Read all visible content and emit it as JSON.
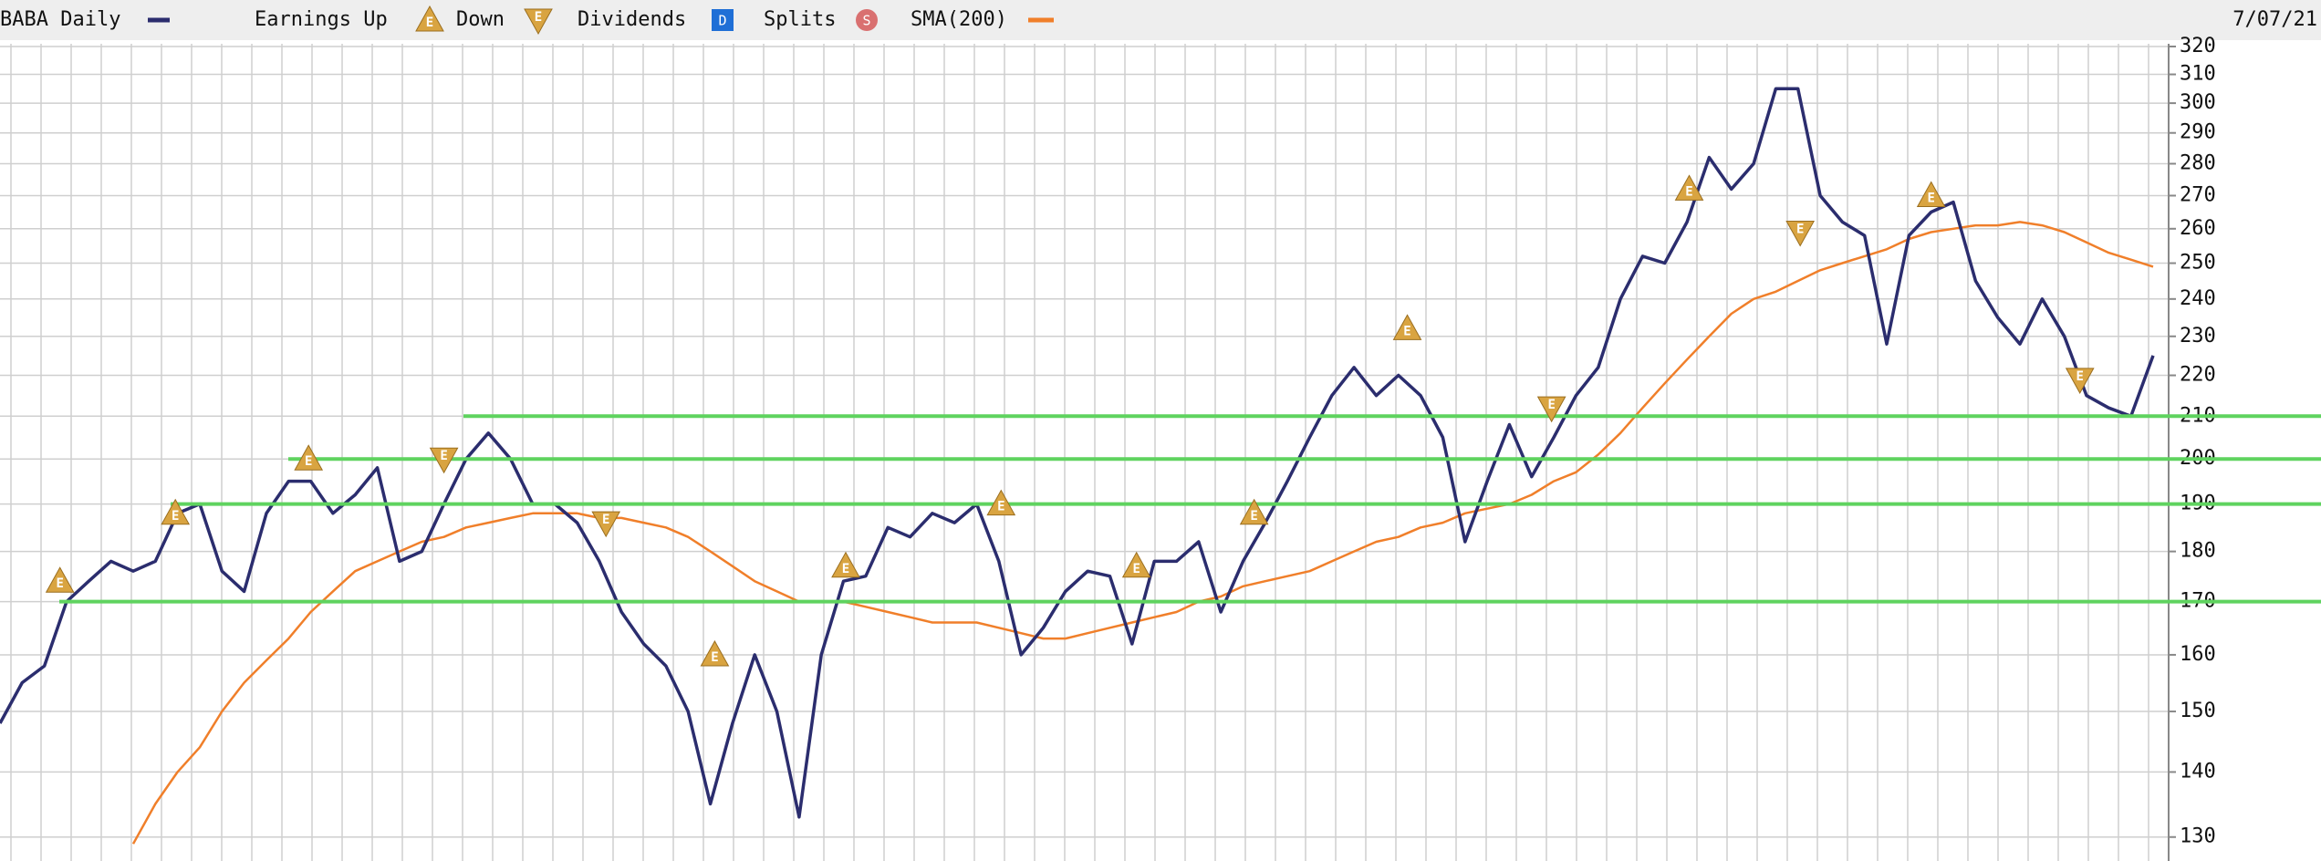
{
  "chart_data": {
    "type": "line",
    "log_scale": true,
    "grid": true,
    "date": "7/07/21",
    "legend": {
      "earnings_up": "Earnings Up",
      "down": "Down",
      "dividends": "Dividends",
      "splits": "Splits",
      "earnings_letter": "E",
      "dividend_letter": "D",
      "split_letter": "S",
      "marker_color": "#d9a441",
      "dividend_color": "#1f6fd6",
      "split_color": "#d97070"
    },
    "ylim": [
      126.5,
      321
    ],
    "yticks": [
      130,
      140,
      150,
      160,
      170,
      180,
      190,
      200,
      210,
      220,
      230,
      240,
      250,
      260,
      270,
      280,
      290,
      300,
      310,
      320
    ],
    "series": [
      {
        "name": "BABA Daily",
        "color": "#2b2d6e",
        "values": [
          148,
          155,
          158,
          170,
          174,
          178,
          176,
          178,
          188,
          190,
          176,
          172,
          188,
          195,
          195,
          188,
          192,
          198,
          178,
          180,
          190,
          200,
          206,
          200,
          190,
          190,
          186,
          178,
          168,
          162,
          158,
          150,
          135,
          148,
          160,
          150,
          133,
          160,
          174,
          175,
          185,
          183,
          188,
          186,
          190,
          178,
          160,
          165,
          172,
          176,
          175,
          162,
          178,
          178,
          182,
          168,
          178,
          186,
          195,
          205,
          215,
          222,
          215,
          220,
          215,
          205,
          182,
          195,
          208,
          196,
          205,
          215,
          222,
          240,
          252,
          250,
          262,
          282,
          272,
          280,
          305,
          305,
          270,
          262,
          258,
          228,
          258,
          265,
          268,
          245,
          235,
          228,
          240,
          230,
          215,
          212,
          210,
          225
        ]
      },
      {
        "name": "SMA(200)",
        "color": "#f07f2a",
        "values": [
          null,
          null,
          null,
          null,
          null,
          null,
          129,
          135,
          140,
          144,
          150,
          155,
          159,
          163,
          168,
          172,
          176,
          178,
          180,
          182,
          183,
          185,
          186,
          187,
          188,
          188,
          188,
          187,
          187,
          186,
          185,
          183,
          180,
          177,
          174,
          172,
          170,
          170,
          170,
          169,
          168,
          167,
          166,
          166,
          166,
          165,
          164,
          163,
          163,
          164,
          165,
          166,
          167,
          168,
          170,
          171,
          173,
          174,
          175,
          176,
          178,
          180,
          182,
          183,
          185,
          186,
          188,
          189,
          190,
          192,
          195,
          197,
          201,
          206,
          212,
          218,
          224,
          230,
          236,
          240,
          242,
          245,
          248,
          250,
          252,
          254,
          257,
          259,
          260,
          261,
          261,
          262,
          261,
          259,
          256,
          253,
          251,
          249
        ]
      }
    ],
    "levels": {
      "color": "#5fd35f",
      "values": [
        170,
        190,
        200,
        210
      ]
    },
    "earnings": [
      {
        "direction": "up",
        "x": 2.7,
        "y": 174
      },
      {
        "direction": "up",
        "x": 7.9,
        "y": 188
      },
      {
        "direction": "up",
        "x": 13.9,
        "y": 200
      },
      {
        "direction": "down",
        "x": 20,
        "y": 200
      },
      {
        "direction": "down",
        "x": 27.3,
        "y": 186
      },
      {
        "direction": "up",
        "x": 32.2,
        "y": 160
      },
      {
        "direction": "up",
        "x": 38.1,
        "y": 177
      },
      {
        "direction": "up",
        "x": 45.1,
        "y": 190
      },
      {
        "direction": "up",
        "x": 51.2,
        "y": 177
      },
      {
        "direction": "up",
        "x": 56.5,
        "y": 188
      },
      {
        "direction": "up",
        "x": 63.4,
        "y": 232
      },
      {
        "direction": "down",
        "x": 69.9,
        "y": 212
      },
      {
        "direction": "up",
        "x": 76.1,
        "y": 272
      },
      {
        "direction": "down",
        "x": 81.1,
        "y": 259
      },
      {
        "direction": "up",
        "x": 87,
        "y": 270
      },
      {
        "direction": "down",
        "x": 93.7,
        "y": 219
      }
    ]
  }
}
